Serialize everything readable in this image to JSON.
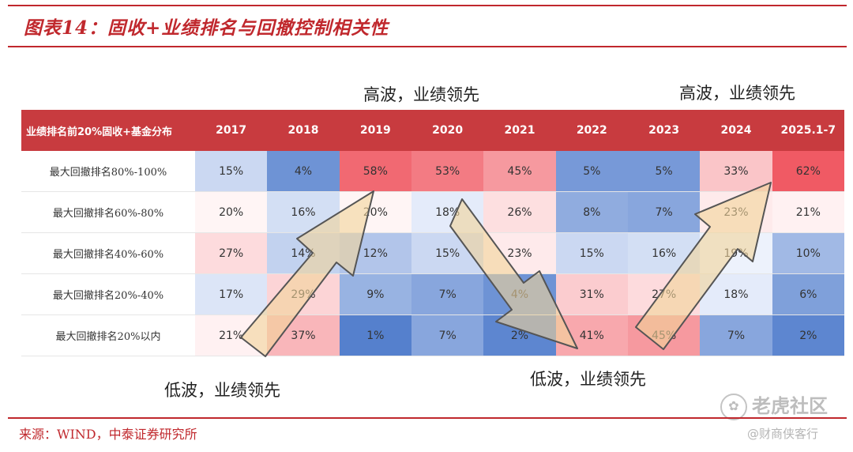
{
  "title": "图表14：固收+业绩排名与回撤控制相关性",
  "annotations": {
    "top_left": "高波，业绩领先",
    "top_right": "高波，业绩领先",
    "bottom_left": "低波，业绩领先",
    "bottom_right": "低波，业绩领先"
  },
  "table": {
    "corner_header": "业绩排名前20%固收+基金分布",
    "columns": [
      "2017",
      "2018",
      "2019",
      "2020",
      "2021",
      "2022",
      "2023",
      "2024",
      "2025.1-7"
    ],
    "rows": [
      {
        "label": "最大回撤排名80%-100%",
        "cells": [
          "15%",
          "4%",
          "58%",
          "53%",
          "45%",
          "5%",
          "5%",
          "33%",
          "62%"
        ]
      },
      {
        "label": "最大回撤排名60%-80%",
        "cells": [
          "20%",
          "16%",
          "20%",
          "18%",
          "26%",
          "8%",
          "7%",
          "23%",
          "21%"
        ]
      },
      {
        "label": "最大回撤排名40%-60%",
        "cells": [
          "27%",
          "14%",
          "12%",
          "15%",
          "23%",
          "15%",
          "16%",
          "19%",
          "10%"
        ]
      },
      {
        "label": "最大回撤排名20%-40%",
        "cells": [
          "17%",
          "29%",
          "9%",
          "7%",
          "4%",
          "31%",
          "27%",
          "18%",
          "6%"
        ]
      },
      {
        "label": "最大回撤排名20%以内",
        "cells": [
          "21%",
          "37%",
          "1%",
          "7%",
          "2%",
          "41%",
          "45%",
          "7%",
          "2%"
        ]
      }
    ]
  },
  "source": "来源：WIND，中泰证券研究所",
  "watermark": {
    "brand": "老虎社区",
    "brand_icon": "paw-icon",
    "handle": "@财商侠客行"
  },
  "colors": {
    "accent_red": "#c0282d",
    "header_red": "#c83b3f",
    "arrow_fill": "#f2d39a",
    "arrow_stroke": "#555555"
  }
}
